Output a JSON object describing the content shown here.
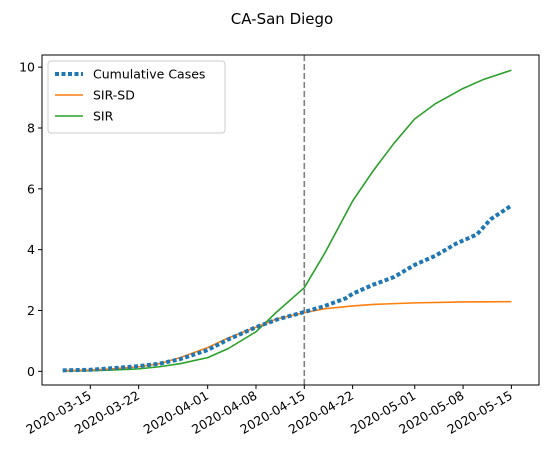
{
  "chart_data": {
    "type": "line",
    "title": "CA-San Diego",
    "xlabel": "",
    "ylabel": "",
    "x_type": "date",
    "xlim": [
      "2020-03-08",
      "2020-05-19"
    ],
    "ylim": [
      -0.45,
      10.4
    ],
    "yticks": [
      0,
      2,
      4,
      6,
      8,
      10
    ],
    "xticks": [
      "2020-03-15",
      "2020-03-22",
      "2020-04-01",
      "2020-04-08",
      "2020-04-15",
      "2020-04-22",
      "2020-05-01",
      "2020-05-08",
      "2020-05-15"
    ],
    "vline": {
      "x": "2020-04-15",
      "color": "#7f7f7f",
      "style": "dashed"
    },
    "legend": "upper-left",
    "grid": false,
    "series": [
      {
        "name": "Cumulative Cases",
        "color": "#1f77b4",
        "style": "dotted",
        "points": [
          [
            "2020-03-11",
            0.03
          ],
          [
            "2020-03-15",
            0.05
          ],
          [
            "2020-03-18",
            0.1
          ],
          [
            "2020-03-22",
            0.17
          ],
          [
            "2020-03-25",
            0.25
          ],
          [
            "2020-03-28",
            0.4
          ],
          [
            "2020-04-01",
            0.7
          ],
          [
            "2020-04-04",
            1.05
          ],
          [
            "2020-04-08",
            1.45
          ],
          [
            "2020-04-11",
            1.7
          ],
          [
            "2020-04-15",
            1.95
          ],
          [
            "2020-04-18",
            2.15
          ],
          [
            "2020-04-21",
            2.4
          ],
          [
            "2020-04-22",
            2.55
          ],
          [
            "2020-04-25",
            2.85
          ],
          [
            "2020-04-28",
            3.1
          ],
          [
            "2020-05-01",
            3.5
          ],
          [
            "2020-05-04",
            3.8
          ],
          [
            "2020-05-07",
            4.2
          ],
          [
            "2020-05-10",
            4.5
          ],
          [
            "2020-05-12",
            5.0
          ],
          [
            "2020-05-15",
            5.45
          ]
        ]
      },
      {
        "name": "SIR-SD",
        "color": "#ff7f0e",
        "style": "solid",
        "points": [
          [
            "2020-03-11",
            0.02
          ],
          [
            "2020-03-15",
            0.04
          ],
          [
            "2020-03-18",
            0.08
          ],
          [
            "2020-03-22",
            0.15
          ],
          [
            "2020-03-25",
            0.25
          ],
          [
            "2020-03-28",
            0.45
          ],
          [
            "2020-04-01",
            0.78
          ],
          [
            "2020-04-04",
            1.1
          ],
          [
            "2020-04-08",
            1.45
          ],
          [
            "2020-04-11",
            1.72
          ],
          [
            "2020-04-15",
            1.93
          ],
          [
            "2020-04-18",
            2.06
          ],
          [
            "2020-04-22",
            2.15
          ],
          [
            "2020-04-25",
            2.2
          ],
          [
            "2020-05-01",
            2.25
          ],
          [
            "2020-05-08",
            2.28
          ],
          [
            "2020-05-15",
            2.29
          ]
        ]
      },
      {
        "name": "SIR",
        "color": "#2ca02c",
        "style": "solid",
        "points": [
          [
            "2020-03-11",
            0.01
          ],
          [
            "2020-03-15",
            0.02
          ],
          [
            "2020-03-18",
            0.04
          ],
          [
            "2020-03-22",
            0.08
          ],
          [
            "2020-03-25",
            0.15
          ],
          [
            "2020-03-28",
            0.25
          ],
          [
            "2020-04-01",
            0.45
          ],
          [
            "2020-04-04",
            0.75
          ],
          [
            "2020-04-08",
            1.3
          ],
          [
            "2020-04-11",
            1.95
          ],
          [
            "2020-04-15",
            2.75
          ],
          [
            "2020-04-18",
            3.9
          ],
          [
            "2020-04-22",
            5.6
          ],
          [
            "2020-04-25",
            6.6
          ],
          [
            "2020-04-28",
            7.5
          ],
          [
            "2020-05-01",
            8.3
          ],
          [
            "2020-05-04",
            8.8
          ],
          [
            "2020-05-08",
            9.3
          ],
          [
            "2020-05-11",
            9.6
          ],
          [
            "2020-05-15",
            9.9
          ]
        ]
      }
    ]
  }
}
